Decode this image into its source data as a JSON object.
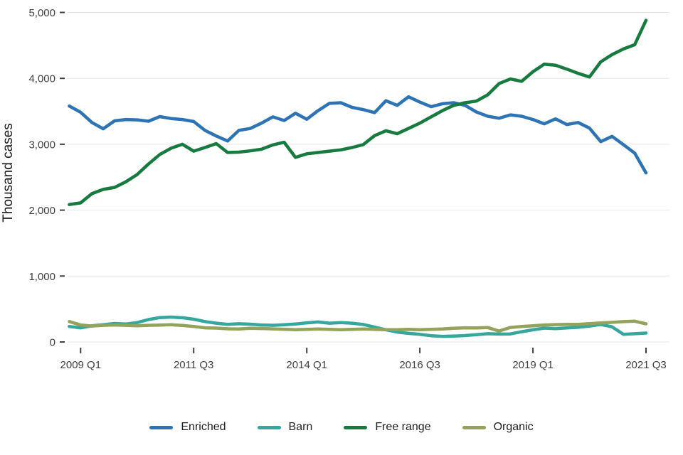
{
  "chart_data": {
    "type": "line",
    "title": "",
    "xlabel": "",
    "ylabel": "Thousand cases",
    "grid": "horizontal",
    "legend_position": "bottom",
    "ylim": [
      0,
      5200
    ],
    "y_ticks": [
      0,
      1000,
      2000,
      3000,
      4000,
      5000
    ],
    "y_tick_labels": [
      "0",
      "1,000",
      "2,000",
      "3,000",
      "4,000",
      "5,000"
    ],
    "x_tick_indices": [
      1,
      11,
      21,
      31,
      41,
      51
    ],
    "x_tick_labels": [
      "2009 Q1",
      "2011 Q3",
      "2014 Q1",
      "2016 Q3",
      "2019 Q1",
      "2021 Q3"
    ],
    "x_categories": [
      "2008 Q4",
      "2009 Q1",
      "2009 Q2",
      "2009 Q3",
      "2009 Q4",
      "2010 Q1",
      "2010 Q2",
      "2010 Q3",
      "2010 Q4",
      "2011 Q1",
      "2011 Q2",
      "2011 Q3",
      "2011 Q4",
      "2012 Q1",
      "2012 Q2",
      "2012 Q3",
      "2012 Q4",
      "2013 Q1",
      "2013 Q2",
      "2013 Q3",
      "2013 Q4",
      "2014 Q1",
      "2014 Q2",
      "2014 Q3",
      "2014 Q4",
      "2015 Q1",
      "2015 Q2",
      "2015 Q3",
      "2015 Q4",
      "2016 Q1",
      "2016 Q2",
      "2016 Q3",
      "2016 Q4",
      "2017 Q1",
      "2017 Q2",
      "2017 Q3",
      "2017 Q4",
      "2018 Q1",
      "2018 Q2",
      "2018 Q3",
      "2018 Q4",
      "2019 Q1",
      "2019 Q2",
      "2019 Q3",
      "2019 Q4",
      "2020 Q1",
      "2020 Q2",
      "2020 Q3",
      "2020 Q4",
      "2021 Q1",
      "2021 Q2",
      "2021 Q3"
    ],
    "series": [
      {
        "name": "Enriched",
        "color": "#2e74b5",
        "values": [
          3580,
          3485,
          3330,
          3235,
          3355,
          3375,
          3370,
          3350,
          3420,
          3390,
          3375,
          3345,
          3210,
          3125,
          3050,
          3210,
          3240,
          3320,
          3415,
          3360,
          3470,
          3380,
          3510,
          3620,
          3630,
          3560,
          3525,
          3480,
          3660,
          3590,
          3720,
          3640,
          3570,
          3615,
          3630,
          3590,
          3490,
          3425,
          3395,
          3445,
          3425,
          3375,
          3310,
          3385,
          3300,
          3330,
          3245,
          3040,
          3120,
          2995,
          2865,
          2565
        ]
      },
      {
        "name": "Barn",
        "color": "#35a79c",
        "values": [
          235,
          215,
          245,
          262,
          280,
          272,
          295,
          340,
          370,
          378,
          368,
          345,
          310,
          285,
          268,
          276,
          270,
          258,
          252,
          262,
          272,
          290,
          303,
          285,
          295,
          285,
          265,
          225,
          185,
          150,
          130,
          115,
          95,
          85,
          90,
          97,
          110,
          125,
          120,
          122,
          155,
          185,
          210,
          202,
          212,
          222,
          242,
          265,
          230,
          115,
          125,
          135
        ]
      },
      {
        "name": "Free range",
        "color": "#177a3e",
        "values": [
          2085,
          2110,
          2250,
          2315,
          2345,
          2430,
          2540,
          2700,
          2845,
          2940,
          3000,
          2895,
          2950,
          3010,
          2875,
          2880,
          2900,
          2925,
          2990,
          3030,
          2800,
          2855,
          2875,
          2895,
          2915,
          2950,
          2995,
          3130,
          3205,
          3160,
          3240,
          3320,
          3415,
          3510,
          3590,
          3630,
          3655,
          3750,
          3920,
          3990,
          3955,
          4100,
          4215,
          4200,
          4140,
          4075,
          4020,
          4250,
          4360,
          4445,
          4510,
          4880
        ]
      },
      {
        "name": "Organic",
        "color": "#93a35c",
        "values": [
          310,
          258,
          242,
          252,
          258,
          252,
          246,
          252,
          256,
          262,
          250,
          235,
          215,
          210,
          200,
          196,
          208,
          204,
          198,
          193,
          186,
          192,
          197,
          191,
          186,
          191,
          196,
          191,
          186,
          186,
          191,
          186,
          191,
          197,
          208,
          215,
          212,
          219,
          165,
          220,
          235,
          245,
          258,
          263,
          268,
          268,
          278,
          288,
          298,
          308,
          315,
          275
        ]
      }
    ]
  }
}
